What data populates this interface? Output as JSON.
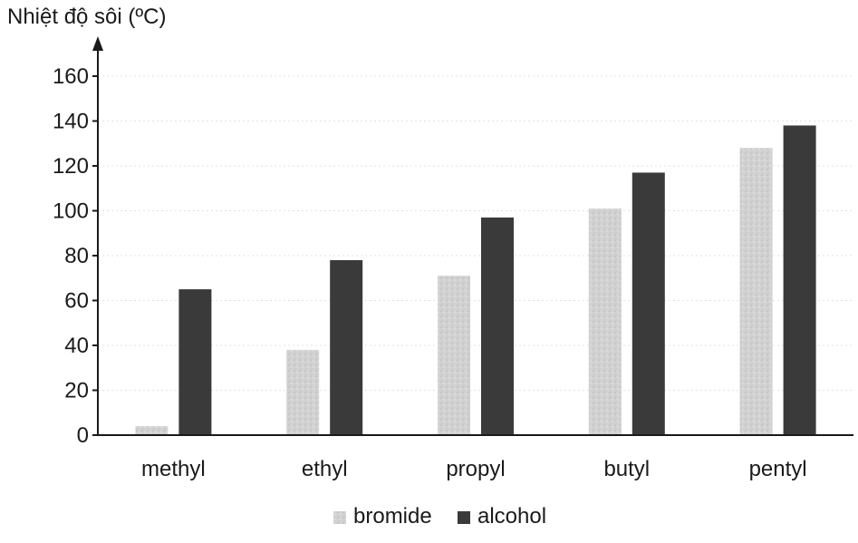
{
  "chart_data": {
    "type": "bar",
    "title": "",
    "ylabel": "Nhiệt độ sôi (ºC)",
    "xlabel": "",
    "categories": [
      "methyl",
      "ethyl",
      "propyl",
      "butyl",
      "pentyl"
    ],
    "series": [
      {
        "name": "bromide",
        "values": [
          4,
          38,
          71,
          101,
          128
        ],
        "color": "#cfcfcf"
      },
      {
        "name": "alcohol",
        "values": [
          65,
          78,
          97,
          117,
          138
        ],
        "color": "#3a3a3a"
      }
    ],
    "ylim": [
      0,
      160
    ],
    "yticks": [
      0,
      20,
      40,
      60,
      80,
      100,
      120,
      140,
      160
    ],
    "grid": true,
    "legend": "bottom-center"
  }
}
